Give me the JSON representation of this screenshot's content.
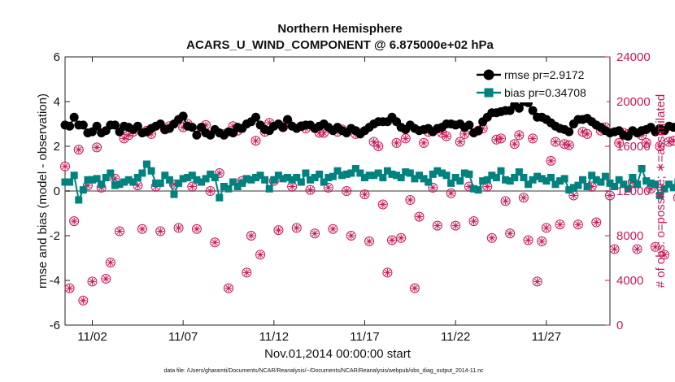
{
  "chart_data": {
    "type": "line",
    "title": "Northern Hemisphere",
    "subtitle": "ACARS_U_WIND_COMPONENT @ 6.875000e+02 hPa",
    "xlabel": "Nov.01,2014 00:00:00 start",
    "ylabel": "rmse and bias (model - observation)",
    "ylabel_right": "# of obs: o=possible; ∗=assimilated",
    "footnote": "data file: /Users/gharamti/Documents/NCAR/Reanalysis/~/Documents/NCAR/Reanalysis/webpub/obs_diag_output_2014-11.nc",
    "x_ticks": [
      "11/02",
      "11/07",
      "11/12",
      "11/17",
      "11/22",
      "11/27"
    ],
    "y_ticks_left": [
      "-6",
      "-4",
      "-2",
      "0",
      "2",
      "4",
      "6"
    ],
    "y_ticks_right": [
      "0",
      "4000",
      "8000",
      "12000",
      "16000",
      "20000",
      "24000"
    ],
    "ylim": [
      -6,
      6
    ],
    "ylim_right": [
      0,
      24000
    ],
    "grid": false,
    "legend_position": "top-right",
    "zero_line": true,
    "colors": {
      "rmse": "#000000",
      "bias": "#00827f",
      "obs": "#c8185a",
      "zero": "#999999"
    },
    "x_start_day": 0.5,
    "x_step_days": 0.25,
    "x_end_day": 30.5,
    "series": [
      {
        "name": "rmse pr=2.9172",
        "marker": "circle",
        "values": [
          2.95,
          2.9,
          3.3,
          2.95,
          2.95,
          2.6,
          2.65,
          2.9,
          2.6,
          2.7,
          2.95,
          2.95,
          2.65,
          2.9,
          2.85,
          2.75,
          2.9,
          2.6,
          2.65,
          2.8,
          2.9,
          3.0,
          2.75,
          2.8,
          3.0,
          3.2,
          3.35,
          2.9,
          2.85,
          2.5,
          2.85,
          2.6,
          2.5,
          2.75,
          2.6,
          2.5,
          2.65,
          2.6,
          2.85,
          2.8,
          3.0,
          3.1,
          3.3,
          2.95,
          2.75,
          2.7,
          2.9,
          3.0,
          2.85,
          3.2,
          2.9,
          2.8,
          2.9,
          2.95,
          2.95,
          2.8,
          2.9,
          3.0,
          2.85,
          2.7,
          2.85,
          2.7,
          2.6,
          2.8,
          2.7,
          2.55,
          2.7,
          2.85,
          3.0,
          3.1,
          3.1,
          3.1,
          3.3,
          3.1,
          2.85,
          2.75,
          2.95,
          2.8,
          2.7,
          2.75,
          2.8,
          2.65,
          2.8,
          2.85,
          3.0,
          3.0,
          2.95,
          3.0,
          2.85,
          2.95,
          2.6,
          2.7,
          3.1,
          3.3,
          3.5,
          3.5,
          3.55,
          3.6,
          3.6,
          3.85,
          3.7,
          4.0,
          3.95,
          3.6,
          3.3,
          3.3,
          3.2,
          3.05,
          2.9,
          2.8,
          2.75,
          2.65,
          3.0,
          3.2,
          3.2,
          3.25,
          3.1,
          2.95,
          2.85,
          2.7,
          2.6,
          2.65,
          2.7,
          2.5,
          2.45,
          2.7,
          2.6,
          2.7,
          2.75,
          2.85,
          2.65,
          2.8,
          2.7,
          2.9,
          2.85,
          2.9,
          3.1,
          3.05,
          3.0,
          3.2,
          3.2
        ]
      },
      {
        "name": "bias pr=0.34708",
        "marker": "square",
        "values": [
          0.4,
          0.4,
          0.7,
          -0.4,
          0.05,
          0.5,
          0.5,
          0.55,
          0.3,
          0.6,
          0.8,
          0.25,
          0.3,
          0.4,
          0.5,
          0.4,
          0.6,
          0.8,
          1.2,
          0.9,
          0.35,
          0.35,
          0.7,
          0.5,
          -0.15,
          0.35,
          0.55,
          0.6,
          0.7,
          0.5,
          0.4,
          0.55,
          0.75,
          0.6,
          -0.3,
          0.2,
          0.1,
          0.4,
          0.2,
          0.35,
          0.55,
          0.5,
          0.6,
          0.7,
          0.5,
          0.1,
          0.5,
          0.7,
          0.55,
          0.6,
          0.5,
          0.6,
          0.4,
          0.8,
          0.5,
          0.6,
          0.75,
          0.4,
          0.6,
          0.65,
          0.9,
          0.7,
          0.75,
          0.8,
          1.0,
          0.8,
          0.6,
          0.7,
          0.7,
          0.8,
          0.6,
          0.9,
          0.75,
          0.7,
          0.6,
          0.85,
          0.8,
          0.55,
          0.7,
          0.55,
          0.4,
          0.75,
          0.9,
          0.8,
          0.7,
          0.35,
          0.6,
          0.45,
          0.8,
          0.75,
          0.1,
          0.05,
          0.45,
          0.5,
          0.7,
          0.6,
          0.9,
          0.5,
          0.45,
          0.6,
          0.85,
          0.6,
          0.3,
          0.5,
          0.65,
          0.55,
          0.45,
          0.6,
          0.3,
          0.45,
          0.55,
          0.05,
          0.15,
          0.25,
          0.5,
          0.2,
          0.7,
          0.5,
          0.4,
          0.65,
          0.35,
          0.2,
          0.5,
          0.3,
          0.1,
          0.6,
          0.3,
          1.0,
          0.45,
          0.35,
          0.3,
          -0.2,
          0.1,
          0.3,
          0.15,
          0.4,
          0.8,
          0.2
        ]
      },
      {
        "name": "obs possible",
        "marker": "circle-open",
        "axis": "right",
        "values": [
          14200,
          3300,
          9300,
          15700,
          2200,
          12500,
          3900,
          15900,
          12300,
          4150,
          5600,
          13100,
          8400,
          16700,
          17000,
          17300,
          12500,
          8600,
          17400,
          17100,
          12400,
          8400,
          17500,
          17800,
          12600,
          8700,
          17700,
          18000,
          12400,
          8600,
          17600,
          17900,
          12000,
          7400,
          13600,
          17100,
          3300,
          17800,
          17400,
          12900,
          4700,
          8000,
          16500,
          6300,
          17300,
          18100,
          12900,
          8500,
          17700,
          18200,
          12400,
          8700,
          17800,
          17600,
          12100,
          8200,
          17200,
          17200,
          12300,
          8600,
          17300,
          17500,
          12000,
          8000,
          17100,
          17200,
          11700,
          7500,
          16400,
          16000,
          10800,
          4700,
          7600,
          16300,
          7800,
          16700,
          11200,
          3300,
          9700,
          16300,
          17300,
          12300,
          8900,
          17200,
          16900,
          11800,
          8900,
          16400,
          17100,
          12400,
          9300,
          17400,
          17600,
          12400,
          7800,
          16600,
          16700,
          11100,
          8200,
          16200,
          17000,
          11400,
          7600,
          16700,
          3900,
          7500,
          8700,
          14700,
          16400,
          9000,
          16200,
          16100,
          11600,
          9000,
          17300,
          17100,
          12400,
          9200,
          17400,
          17700,
          11600,
          6800,
          16300,
          17200,
          17100,
          12800,
          6800,
          17000,
          16300,
          12200,
          7000,
          16000,
          6300,
          16400,
          16500,
          11400,
          7200,
          16100,
          16300,
          6100,
          16300,
          17100,
          16100,
          6500,
          16400,
          16200,
          7000,
          15700,
          16300,
          0
        ]
      },
      {
        "name": "obs assimilated",
        "marker": "star",
        "axis": "right",
        "values": [
          14200,
          3300,
          9300,
          15700,
          2200,
          12500,
          3900,
          15900,
          12300,
          4150,
          5600,
          13100,
          8400,
          16700,
          17000,
          17300,
          12500,
          8600,
          17400,
          17100,
          12400,
          8400,
          17500,
          17800,
          12600,
          8700,
          17700,
          18000,
          12400,
          8600,
          17600,
          17900,
          12000,
          7400,
          13600,
          17100,
          3300,
          17800,
          17400,
          12900,
          4700,
          8000,
          16500,
          6300,
          17300,
          18100,
          12900,
          8500,
          17700,
          18200,
          12400,
          8700,
          17800,
          17600,
          12100,
          8200,
          17200,
          17200,
          12300,
          8600,
          17300,
          17500,
          12000,
          8000,
          17100,
          17200,
          11700,
          7500,
          16400,
          16000,
          10800,
          4700,
          7600,
          16300,
          7800,
          16700,
          11200,
          3300,
          9700,
          16300,
          17300,
          12300,
          8900,
          17200,
          16900,
          11800,
          8900,
          16400,
          17100,
          12400,
          9300,
          17400,
          17600,
          12400,
          7800,
          16600,
          16700,
          11100,
          8200,
          16200,
          17000,
          11400,
          7600,
          16700,
          3900,
          7500,
          8700,
          14700,
          16400,
          9000,
          16200,
          16100,
          11600,
          9000,
          17300,
          17100,
          12400,
          9200,
          17400,
          17700,
          11600,
          6800,
          16300,
          17200,
          17100,
          12800,
          6800,
          17000,
          16300,
          12200,
          7000,
          16000,
          6300,
          16400,
          16500,
          11400,
          7200,
          16100,
          16300,
          6100,
          16300,
          17100,
          16100,
          6500,
          16400,
          16200,
          7000,
          15700,
          16300,
          0
        ]
      }
    ]
  }
}
